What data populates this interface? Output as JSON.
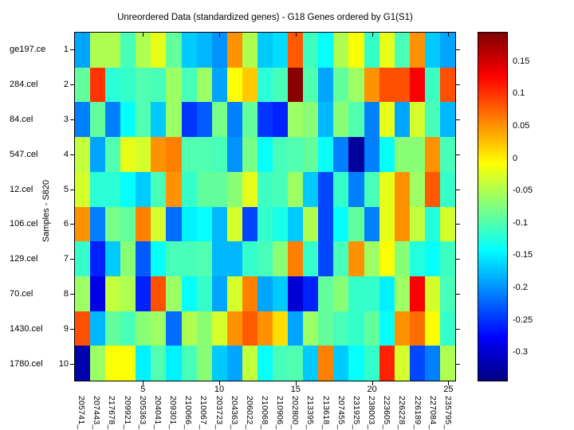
{
  "title": "Unreordered Data (standardized genes) - G18 Genes ordered by G1(S1)",
  "y_axis": {
    "label": "Samples - S820",
    "sample_names": [
      "ge197.ce",
      "284.cel",
      "84.cel",
      "547.cel",
      "12.cel",
      "106.cel",
      "129.cel",
      "70.cel",
      "1430.cel",
      "1780.cel"
    ],
    "row_numbers": [
      "1",
      "2",
      "3",
      "4",
      "5",
      "6",
      "7",
      "8",
      "9",
      "10"
    ]
  },
  "x_axis": {
    "tick_labels": [
      "5",
      "10",
      "15",
      "20",
      "25"
    ],
    "tick_cols": [
      5,
      10,
      15,
      20,
      25
    ],
    "gene_labels": [
      "205741_",
      "207443_",
      "217678_",
      "209921_",
      "205363_",
      "204041_",
      "209301_",
      "210066_",
      "210067_",
      "203723_",
      "204363_",
      "206022_",
      "210068_",
      "210906_",
      "202800_",
      "213395_",
      "213618_",
      "207455_",
      "231925_",
      "238003_",
      "223605_",
      "226228_",
      "226189_",
      "227084_",
      "235795_"
    ]
  },
  "colorbar": {
    "colormap": "jet",
    "tick_labels": [
      "0.15",
      "0.1",
      "0.05",
      "0",
      "-0.05",
      "-0.1",
      "-0.15",
      "-0.2",
      "-0.25",
      "-0.3"
    ],
    "tick_values": [
      0.15,
      0.1,
      0.05,
      0,
      -0.05,
      -0.1,
      -0.15,
      -0.2,
      -0.25,
      -0.3
    ],
    "top_color": "#800000",
    "bottom_color": "#000080"
  },
  "chart_data": {
    "type": "heatmap",
    "title": "Unreordered Data (standardized genes) - G18 Genes ordered by G1(S1)",
    "ylabel": "Samples - S820",
    "xlabel": "",
    "colormap": "jet",
    "legend_position": "colorbar-right",
    "grid": false,
    "xticks": [
      5,
      10,
      15,
      20,
      25
    ],
    "value_range": [
      -0.345,
      0.195
    ],
    "x_categories": [
      "205741_",
      "207443_",
      "217678_",
      "209921_",
      "205363_",
      "204041_",
      "209301_",
      "210066_",
      "210067_",
      "203723_",
      "204363_",
      "206022_",
      "210068_",
      "210906_",
      "202800_",
      "213395_",
      "213618_",
      "207455_",
      "231925_",
      "238003_",
      "223605_",
      "226228_",
      "226189_",
      "227084_",
      "235795_"
    ],
    "y_categories": [
      "ge197.ce",
      "284.cel",
      "84.cel",
      "547.cel",
      "12.cel",
      "106.cel",
      "129.cel",
      "70.cel",
      "1430.cel",
      "1780.cel"
    ],
    "values": [
      [
        -0.19,
        -0.05,
        -0.05,
        -0.105,
        -0.05,
        -0.02,
        -0.09,
        -0.17,
        -0.18,
        -0.2,
        0.05,
        -0.05,
        -0.17,
        -0.16,
        0.08,
        -0.11,
        -0.14,
        -0.05,
        -0.01,
        -0.115,
        -0.02,
        -0.105,
        0.05,
        -0.17,
        -0.19
      ],
      [
        -0.09,
        0.1,
        -0.12,
        -0.115,
        -0.1,
        -0.105,
        -0.06,
        -0.105,
        -0.06,
        -0.19,
        -0.01,
        0.02,
        -0.12,
        -0.105,
        0.19,
        -0.1,
        -0.19,
        -0.09,
        -0.06,
        0.05,
        0.085,
        0.085,
        0.13,
        -0.11,
        0.085
      ],
      [
        -0.21,
        -0.09,
        -0.21,
        -0.14,
        -0.1,
        -0.17,
        -0.06,
        -0.25,
        -0.23,
        -0.08,
        -0.21,
        -0.09,
        -0.25,
        -0.26,
        -0.06,
        -0.07,
        -0.18,
        -0.07,
        -0.1,
        -0.21,
        -0.02,
        -0.19,
        -0.03,
        -0.105,
        -0.18
      ],
      [
        -0.04,
        -0.19,
        -0.1,
        -0.02,
        -0.03,
        0.05,
        0.06,
        -0.1,
        -0.1,
        -0.105,
        -0.2,
        -0.08,
        -0.14,
        -0.105,
        -0.1,
        -0.09,
        -0.14,
        -0.21,
        -0.33,
        -0.21,
        -0.14,
        -0.07,
        -0.07,
        0.05,
        -0.105
      ],
      [
        -0.03,
        -0.12,
        -0.12,
        -0.14,
        -0.17,
        -0.105,
        0.05,
        -0.115,
        -0.09,
        -0.09,
        -0.07,
        -0.02,
        -0.11,
        -0.105,
        -0.06,
        -0.17,
        -0.24,
        -0.115,
        -0.21,
        -0.105,
        -0.02,
        0.05,
        -0.06,
        0.08,
        -0.115
      ],
      [
        0.05,
        -0.21,
        -0.08,
        -0.09,
        0.06,
        -0.03,
        -0.22,
        -0.15,
        -0.14,
        -0.18,
        -0.03,
        -0.24,
        -0.115,
        -0.13,
        -0.17,
        -0.05,
        -0.24,
        -0.14,
        -0.09,
        -0.21,
        -0.02,
        0.05,
        -0.04,
        -0.125,
        -0.03
      ],
      [
        -0.115,
        -0.26,
        -0.17,
        -0.07,
        -0.23,
        -0.14,
        -0.105,
        -0.105,
        -0.1,
        -0.18,
        -0.18,
        -0.115,
        -0.105,
        -0.07,
        0.06,
        -0.115,
        -0.24,
        -0.105,
        0.05,
        -0.06,
        -0.01,
        -0.07,
        -0.125,
        -0.14,
        -0.11
      ],
      [
        -0.06,
        -0.29,
        -0.04,
        -0.05,
        -0.26,
        0.085,
        -0.06,
        -0.14,
        -0.115,
        -0.19,
        -0.03,
        0.06,
        -0.19,
        -0.17,
        -0.3,
        -0.26,
        -0.09,
        -0.07,
        -0.115,
        -0.115,
        -0.15,
        -0.06,
        0.13,
        -0.03,
        -0.105
      ],
      [
        0.085,
        -0.18,
        -0.09,
        -0.105,
        -0.07,
        -0.06,
        -0.22,
        -0.05,
        -0.07,
        -0.03,
        0.05,
        0.08,
        0.05,
        0.01,
        -0.19,
        -0.06,
        -0.09,
        -0.105,
        -0.115,
        -0.09,
        -0.14,
        0.05,
        0.07,
        -0.01,
        -0.115
      ],
      [
        -0.32,
        -0.06,
        -0.01,
        -0.01,
        -0.15,
        -0.1,
        -0.15,
        -0.105,
        -0.07,
        -0.17,
        -0.19,
        -0.04,
        -0.14,
        -0.105,
        -0.1,
        -0.17,
        0.06,
        -0.17,
        -0.14,
        -0.115,
        0.11,
        -0.03,
        -0.24,
        -0.21,
        -0.05
      ]
    ]
  }
}
